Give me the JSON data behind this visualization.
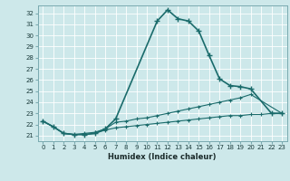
{
  "xlabel": "Humidex (Indice chaleur)",
  "bg_color": "#cde8ea",
  "grid_color": "#b0d0d2",
  "line_color": "#1a6b6b",
  "xlim": [
    -0.5,
    23.5
  ],
  "ylim": [
    20.5,
    32.7
  ],
  "yticks": [
    21,
    22,
    23,
    24,
    25,
    26,
    27,
    28,
    29,
    30,
    31,
    32
  ],
  "xticks": [
    0,
    1,
    2,
    3,
    4,
    5,
    6,
    7,
    8,
    9,
    10,
    11,
    12,
    13,
    14,
    15,
    16,
    17,
    18,
    19,
    20,
    21,
    22,
    23
  ],
  "series1_x": [
    0,
    1,
    2,
    3,
    4,
    5,
    6,
    7,
    11,
    12,
    13,
    14,
    15,
    16,
    17,
    18,
    19,
    20,
    22,
    23
  ],
  "series1_y": [
    22.3,
    21.8,
    21.2,
    21.1,
    21.1,
    21.2,
    21.6,
    22.5,
    31.3,
    32.3,
    31.5,
    31.3,
    30.4,
    28.2,
    26.1,
    25.5,
    25.4,
    25.2,
    23.0,
    23.0
  ],
  "series2_x": [
    0,
    1,
    2,
    3,
    4,
    5,
    6,
    7,
    8,
    9,
    10,
    11,
    12,
    13,
    14,
    15,
    16,
    17,
    18,
    19,
    20,
    23
  ],
  "series2_y": [
    22.3,
    21.8,
    21.2,
    21.1,
    21.2,
    21.3,
    21.6,
    22.2,
    22.3,
    22.5,
    22.6,
    22.8,
    23.0,
    23.2,
    23.4,
    23.6,
    23.8,
    24.0,
    24.2,
    24.4,
    24.7,
    23.0
  ],
  "series3_x": [
    0,
    1,
    2,
    3,
    4,
    5,
    6,
    7,
    8,
    9,
    10,
    11,
    12,
    13,
    14,
    15,
    16,
    17,
    18,
    19,
    20,
    21,
    22,
    23
  ],
  "series3_y": [
    22.3,
    21.8,
    21.2,
    21.1,
    21.1,
    21.2,
    21.5,
    21.7,
    21.8,
    21.9,
    22.0,
    22.1,
    22.2,
    22.3,
    22.4,
    22.5,
    22.6,
    22.7,
    22.8,
    22.8,
    22.9,
    22.9,
    23.0,
    23.0
  ]
}
